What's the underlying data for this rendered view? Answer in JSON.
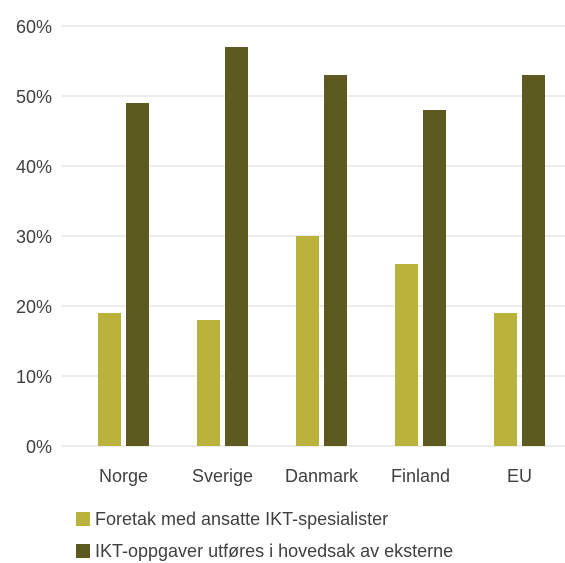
{
  "chart_data": {
    "type": "bar",
    "categories": [
      "Norge",
      "Sverige",
      "Danmark",
      "Finland",
      "EU"
    ],
    "series": [
      {
        "name": "Foretak med ansatte IKT-spesialister",
        "color": "#b9b33c",
        "values": [
          19,
          18,
          30,
          26,
          19
        ]
      },
      {
        "name": "IKT-oppgaver utføres i hovedsak av eksterne",
        "color": "#5c5a1e",
        "values": [
          49,
          57,
          53,
          48,
          53
        ]
      }
    ],
    "ylim": [
      0,
      60
    ],
    "yticks": [
      {
        "value": 0,
        "label": "0%"
      },
      {
        "value": 10,
        "label": "10%"
      },
      {
        "value": 20,
        "label": "20%"
      },
      {
        "value": 30,
        "label": "30%"
      },
      {
        "value": 40,
        "label": "40%"
      },
      {
        "value": 50,
        "label": "50%"
      },
      {
        "value": 60,
        "label": "60%"
      }
    ],
    "grid": true,
    "legend": "bottom"
  }
}
